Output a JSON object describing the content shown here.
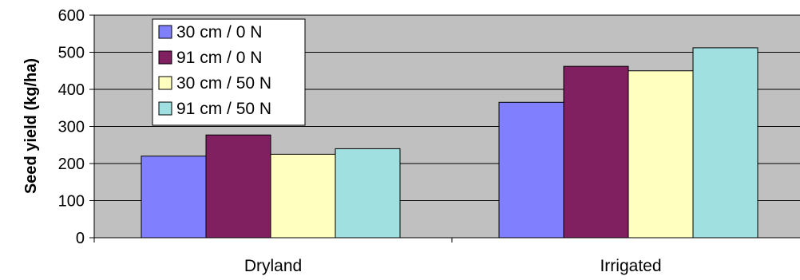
{
  "chart_data": {
    "type": "bar",
    "categories": [
      "Dryland",
      "Irrigated"
    ],
    "series": [
      {
        "name": "30 cm / 0 N",
        "color": "#8080ff",
        "values": [
          220,
          365
        ]
      },
      {
        "name": "91 cm / 0 N",
        "color": "#802060",
        "values": [
          277,
          462
        ]
      },
      {
        "name": "30 cm / 50 N",
        "color": "#ffffc0",
        "values": [
          225,
          450
        ]
      },
      {
        "name": "91 cm / 50 N",
        "color": "#a0e0e0",
        "values": [
          240,
          512
        ]
      }
    ],
    "yticks": [
      "0",
      "100",
      "200",
      "300",
      "400",
      "500",
      "600"
    ],
    "ylim": [
      0,
      600
    ],
    "ylabel": "Seed yield (kg/ha)",
    "xlabel": "",
    "plot_background": "#c0c0c0",
    "grid": "horizontal",
    "legend": "top-left"
  }
}
